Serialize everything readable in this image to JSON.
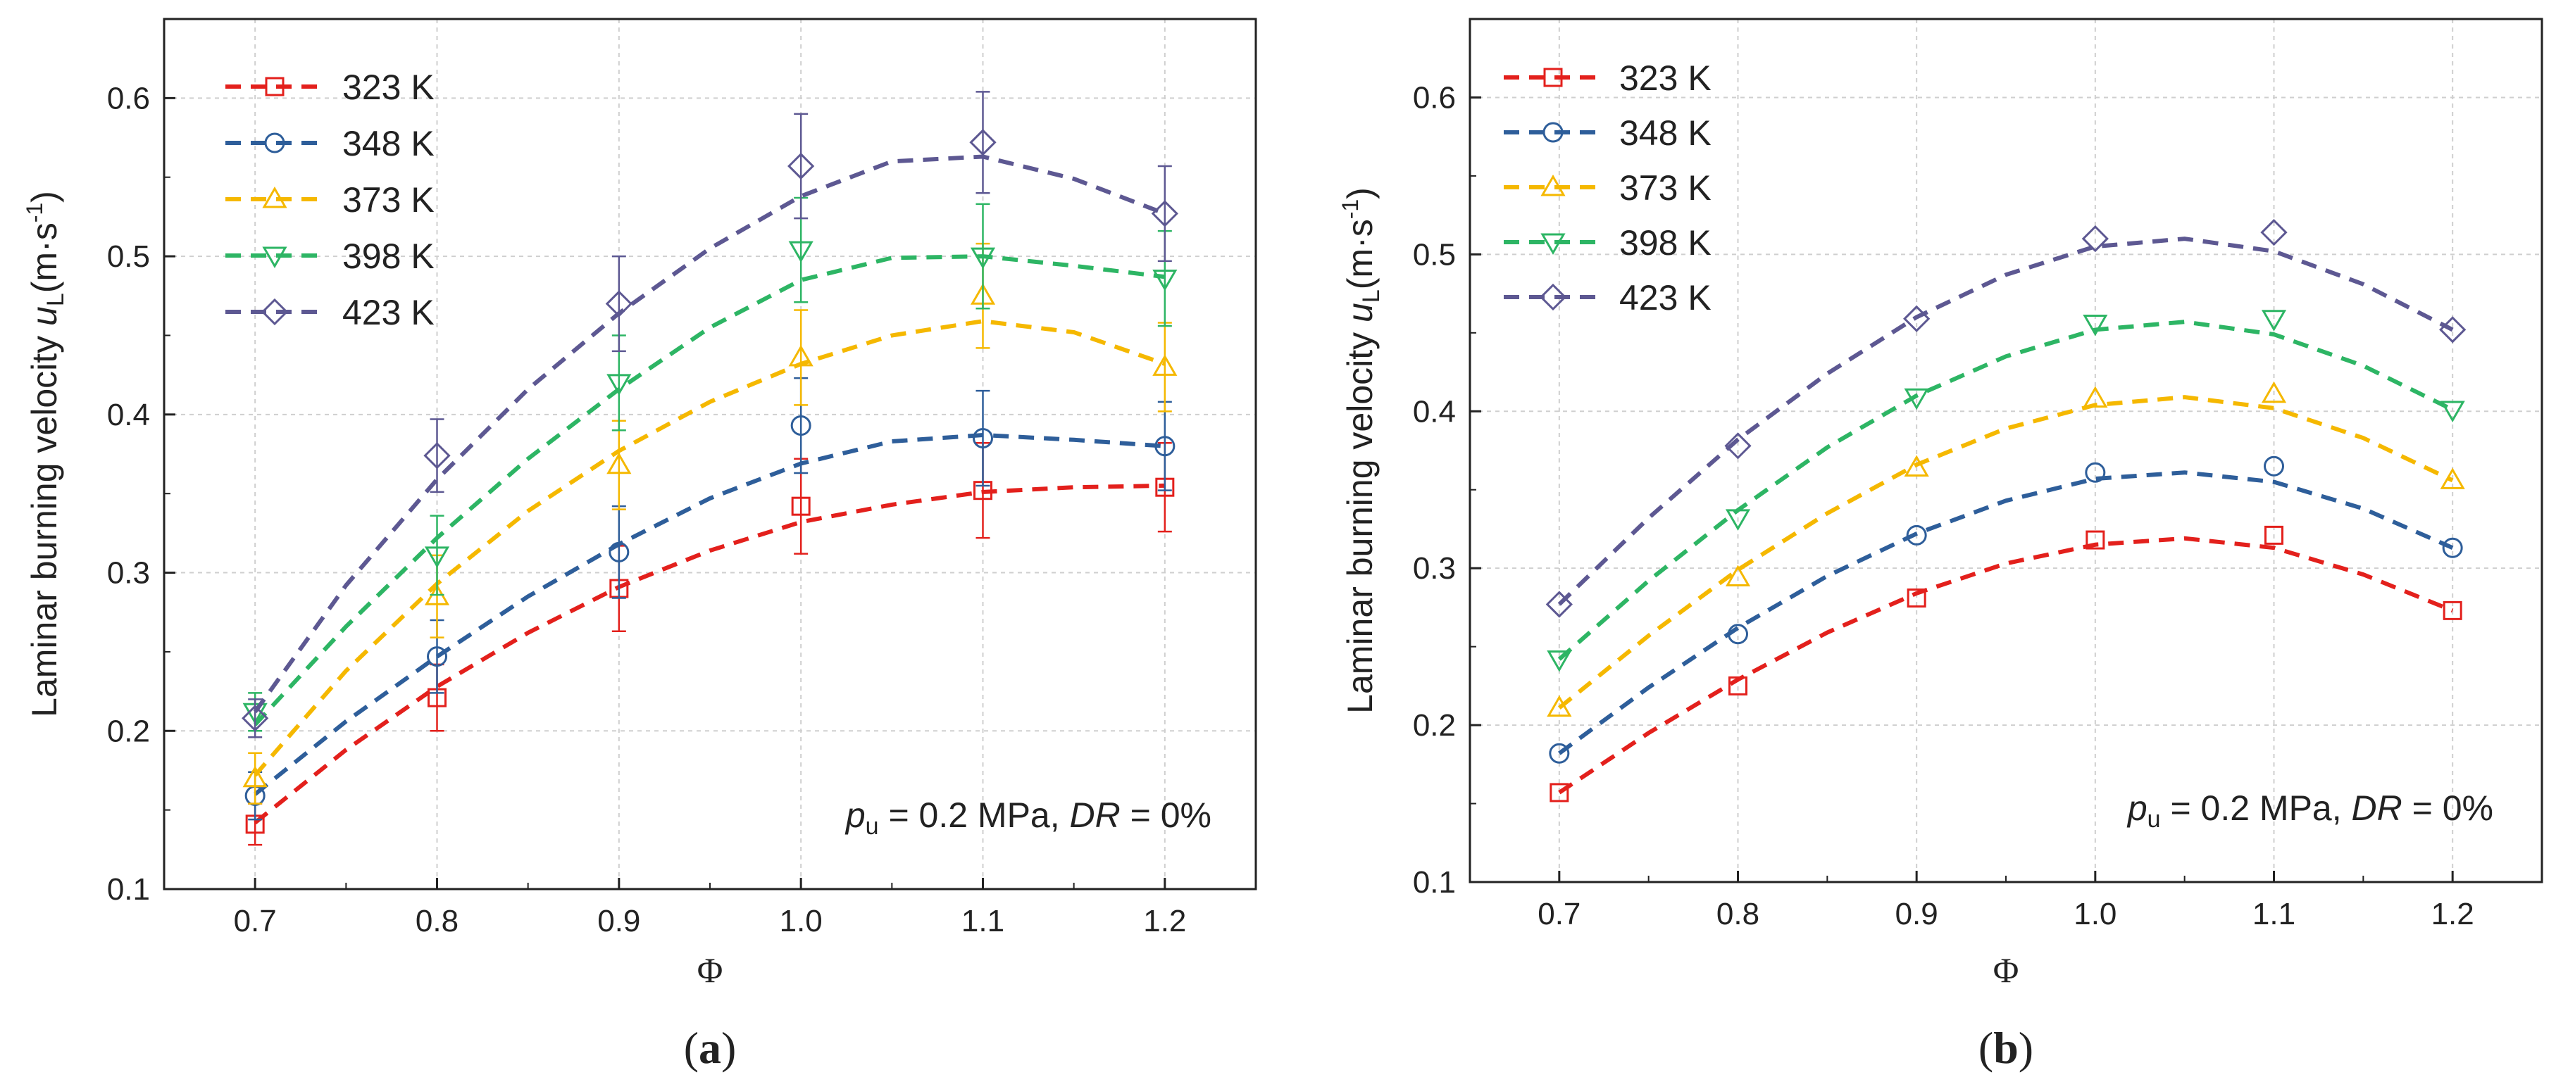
{
  "chart_data": [
    {
      "type": "line",
      "panel_label": "a",
      "xlabel": "Φ",
      "ylabel": {
        "main": "Laminar burning velocity ",
        "var": "u",
        "sub": "L",
        "unit": "(m·s",
        "sup": "-1",
        "close": ")"
      },
      "xlim": [
        0.65,
        1.25
      ],
      "ylim": [
        0.1,
        0.65
      ],
      "xticks": [
        "0.7",
        "0.8",
        "0.9",
        "1.0",
        "1.1",
        "1.2"
      ],
      "yticks": [
        "0.1",
        "0.2",
        "0.3",
        "0.4",
        "0.5",
        "0.6"
      ],
      "grid": true,
      "legend_position": "top-left",
      "annotation": {
        "var": "p",
        "sub": "u",
        "mid": " = 0.2 MPa, ",
        "var2": "DR",
        "end": " = 0%"
      },
      "x": [
        0.7,
        0.8,
        0.9,
        1.0,
        1.1,
        1.2
      ],
      "series": [
        {
          "name": "323 K",
          "marker": "square",
          "color": "#e3201c",
          "values": [
            0.141,
            0.221,
            0.29,
            0.342,
            0.352,
            0.354
          ],
          "errors": [
            0.013,
            0.021,
            0.027,
            0.03,
            0.03,
            0.028
          ],
          "fit": [
            [
              0.7,
              0.142
            ],
            [
              0.75,
              0.188
            ],
            [
              0.8,
              0.228
            ],
            [
              0.85,
              0.262
            ],
            [
              0.9,
              0.291
            ],
            [
              0.95,
              0.314
            ],
            [
              1.0,
              0.332
            ],
            [
              1.05,
              0.343
            ],
            [
              1.1,
              0.351
            ],
            [
              1.15,
              0.354
            ],
            [
              1.2,
              0.355
            ]
          ]
        },
        {
          "name": "348 K",
          "marker": "circle",
          "color": "#2e5e9a",
          "values": [
            0.159,
            0.247,
            0.313,
            0.393,
            0.385,
            0.38
          ],
          "errors": [
            0.015,
            0.023,
            0.029,
            0.03,
            0.03,
            0.028
          ],
          "fit": [
            [
              0.7,
              0.16
            ],
            [
              0.75,
              0.206
            ],
            [
              0.8,
              0.247
            ],
            [
              0.85,
              0.285
            ],
            [
              0.9,
              0.318
            ],
            [
              0.95,
              0.347
            ],
            [
              1.0,
              0.369
            ],
            [
              1.05,
              0.383
            ],
            [
              1.1,
              0.387
            ],
            [
              1.15,
              0.384
            ],
            [
              1.2,
              0.38
            ]
          ]
        },
        {
          "name": "373 K",
          "marker": "triangle-up",
          "color": "#f5b800",
          "values": [
            0.17,
            0.285,
            0.368,
            0.436,
            0.475,
            0.43
          ],
          "errors": [
            0.016,
            0.026,
            0.028,
            0.03,
            0.033,
            0.028
          ],
          "fit": [
            [
              0.7,
              0.172
            ],
            [
              0.75,
              0.238
            ],
            [
              0.8,
              0.293
            ],
            [
              0.85,
              0.339
            ],
            [
              0.9,
              0.377
            ],
            [
              0.95,
              0.408
            ],
            [
              1.0,
              0.432
            ],
            [
              1.05,
              0.45
            ],
            [
              1.1,
              0.459
            ],
            [
              1.15,
              0.452
            ],
            [
              1.2,
              0.432
            ]
          ]
        },
        {
          "name": "398 K",
          "marker": "triangle-down",
          "color": "#2db564",
          "values": [
            0.212,
            0.311,
            0.42,
            0.504,
            0.5,
            0.486
          ],
          "errors": [
            0.012,
            0.025,
            0.03,
            0.033,
            0.033,
            0.03
          ],
          "fit": [
            [
              0.7,
              0.204
            ],
            [
              0.75,
              0.266
            ],
            [
              0.8,
              0.322
            ],
            [
              0.85,
              0.372
            ],
            [
              0.9,
              0.416
            ],
            [
              0.95,
              0.455
            ],
            [
              1.0,
              0.485
            ],
            [
              1.05,
              0.499
            ],
            [
              1.1,
              0.5
            ],
            [
              1.15,
              0.494
            ],
            [
              1.2,
              0.487
            ]
          ]
        },
        {
          "name": "423 K",
          "marker": "diamond",
          "color": "#5d5892",
          "values": [
            0.208,
            0.374,
            0.47,
            0.557,
            0.572,
            0.527
          ],
          "errors": [
            0.012,
            0.023,
            0.03,
            0.033,
            0.032,
            0.03
          ],
          "fit": [
            [
              0.7,
              0.212
            ],
            [
              0.75,
              0.292
            ],
            [
              0.8,
              0.359
            ],
            [
              0.85,
              0.416
            ],
            [
              0.9,
              0.464
            ],
            [
              0.95,
              0.505
            ],
            [
              1.0,
              0.538
            ],
            [
              1.05,
              0.56
            ],
            [
              1.1,
              0.563
            ],
            [
              1.15,
              0.549
            ],
            [
              1.2,
              0.527
            ]
          ]
        }
      ]
    },
    {
      "type": "line",
      "panel_label": "b",
      "xlabel": "Φ",
      "ylabel": {
        "main": "Laminar burning velocity ",
        "var": "u",
        "sub": "L",
        "unit": "(m·s",
        "sup": "-1",
        "close": ")"
      },
      "xlim": [
        0.65,
        1.25
      ],
      "ylim": [
        0.1,
        0.65
      ],
      "xticks": [
        "0.7",
        "0.8",
        "0.9",
        "1.0",
        "1.1",
        "1.2"
      ],
      "yticks": [
        "0.1",
        "0.2",
        "0.3",
        "0.4",
        "0.5",
        "0.6"
      ],
      "grid": true,
      "legend_position": "top-left",
      "annotation": {
        "var": "p",
        "sub": "u",
        "mid": " = 0.2 MPa, ",
        "var2": "DR",
        "end": " = 0%"
      },
      "x": [
        0.7,
        0.8,
        0.9,
        1.0,
        1.1,
        1.2
      ],
      "series": [
        {
          "name": "323 K",
          "marker": "square",
          "color": "#e3201c",
          "values": [
            0.157,
            0.225,
            0.281,
            0.318,
            0.321,
            0.273
          ],
          "fit": [
            [
              0.7,
              0.157
            ],
            [
              0.75,
              0.195
            ],
            [
              0.8,
              0.229
            ],
            [
              0.85,
              0.259
            ],
            [
              0.9,
              0.284
            ],
            [
              0.95,
              0.303
            ],
            [
              1.0,
              0.315
            ],
            [
              1.05,
              0.319
            ],
            [
              1.1,
              0.313
            ],
            [
              1.15,
              0.296
            ],
            [
              1.2,
              0.273
            ]
          ]
        },
        {
          "name": "348 K",
          "marker": "circle",
          "color": "#2e5e9a",
          "values": [
            0.182,
            0.258,
            0.321,
            0.361,
            0.365,
            0.313
          ],
          "fit": [
            [
              0.7,
              0.182
            ],
            [
              0.75,
              0.224
            ],
            [
              0.8,
              0.262
            ],
            [
              0.85,
              0.295
            ],
            [
              0.9,
              0.322
            ],
            [
              0.95,
              0.343
            ],
            [
              1.0,
              0.357
            ],
            [
              1.05,
              0.361
            ],
            [
              1.1,
              0.355
            ],
            [
              1.15,
              0.338
            ],
            [
              1.2,
              0.313
            ]
          ]
        },
        {
          "name": "373 K",
          "marker": "triangle-up",
          "color": "#f5b800",
          "values": [
            0.211,
            0.294,
            0.364,
            0.408,
            0.411,
            0.356
          ],
          "fit": [
            [
              0.7,
              0.211
            ],
            [
              0.75,
              0.257
            ],
            [
              0.8,
              0.299
            ],
            [
              0.85,
              0.335
            ],
            [
              0.9,
              0.366
            ],
            [
              0.95,
              0.389
            ],
            [
              1.0,
              0.404
            ],
            [
              1.05,
              0.409
            ],
            [
              1.1,
              0.402
            ],
            [
              1.15,
              0.383
            ],
            [
              1.2,
              0.356
            ]
          ]
        },
        {
          "name": "398 K",
          "marker": "triangle-down",
          "color": "#2db564",
          "values": [
            0.242,
            0.332,
            0.409,
            0.456,
            0.459,
            0.401
          ],
          "fit": [
            [
              0.7,
              0.242
            ],
            [
              0.75,
              0.292
            ],
            [
              0.8,
              0.337
            ],
            [
              0.85,
              0.377
            ],
            [
              0.9,
              0.41
            ],
            [
              0.95,
              0.435
            ],
            [
              1.0,
              0.452
            ],
            [
              1.05,
              0.457
            ],
            [
              1.1,
              0.449
            ],
            [
              1.15,
              0.429
            ],
            [
              1.2,
              0.401
            ]
          ]
        },
        {
          "name": "423 K",
          "marker": "diamond",
          "color": "#5d5892",
          "values": [
            0.277,
            0.378,
            0.459,
            0.51,
            0.514,
            0.452
          ],
          "fit": [
            [
              0.7,
              0.277
            ],
            [
              0.75,
              0.332
            ],
            [
              0.8,
              0.382
            ],
            [
              0.85,
              0.424
            ],
            [
              0.9,
              0.46
            ],
            [
              0.95,
              0.487
            ],
            [
              1.0,
              0.505
            ],
            [
              1.05,
              0.51
            ],
            [
              1.1,
              0.502
            ],
            [
              1.15,
              0.481
            ],
            [
              1.2,
              0.452
            ]
          ]
        }
      ]
    }
  ]
}
